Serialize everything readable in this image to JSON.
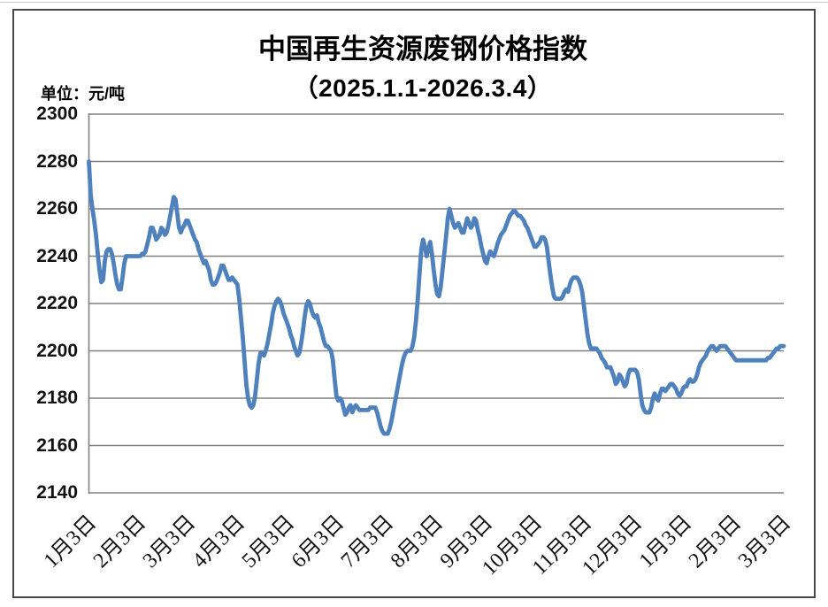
{
  "title": "中国再生资源废钢价格指数",
  "subtitle": "（2025.1.1-2026.3.4）",
  "unit_label": "单位：元/吨",
  "chart_data": {
    "type": "line",
    "title": "中国再生资源废钢价格指数",
    "subtitle": "（2025.1.1-2026.3.4）",
    "ylabel": "单位：元/吨",
    "series_name": "废钢价格指数",
    "line_color": "#4F81BD",
    "gridline_color": "#808080",
    "ylim": [
      2140,
      2300
    ],
    "y_ticks": [
      2300,
      2280,
      2260,
      2240,
      2220,
      2200,
      2180,
      2160,
      2140
    ],
    "x_tick_labels": [
      "1月3日",
      "2月3日",
      "3月3日",
      "4月3日",
      "5月3日",
      "6月3日",
      "7月3日",
      "8月3日",
      "9月3日",
      "10月3日",
      "11月3日",
      "12月3日",
      "1月3日",
      "2月3日",
      "3月3日"
    ],
    "values": [
      2280,
      2266,
      2260,
      2255,
      2249,
      2241,
      2234,
      2229,
      2230,
      2238,
      2242,
      2243,
      2243,
      2241,
      2237,
      2232,
      2228,
      2226,
      2226,
      2231,
      2237,
      2240,
      2240,
      2240,
      2240,
      2240,
      2240,
      2240,
      2240,
      2240,
      2241,
      2241,
      2242,
      2245,
      2248,
      2252,
      2252,
      2250,
      2247,
      2248,
      2249,
      2252,
      2251,
      2249,
      2250,
      2253,
      2257,
      2261,
      2265,
      2264,
      2258,
      2252,
      2250,
      2252,
      2253,
      2255,
      2255,
      2253,
      2251,
      2249,
      2247,
      2246,
      2243,
      2241,
      2239,
      2237,
      2238,
      2236,
      2234,
      2230,
      2228,
      2228,
      2229,
      2231,
      2233,
      2236,
      2236,
      2234,
      2232,
      2230,
      2230,
      2231,
      2230,
      2229,
      2228,
      2222,
      2214,
      2206,
      2196,
      2186,
      2180,
      2177,
      2176,
      2177,
      2181,
      2188,
      2195,
      2199,
      2199,
      2198,
      2200,
      2203,
      2207,
      2211,
      2216,
      2219,
      2221,
      2222,
      2221,
      2219,
      2216,
      2214,
      2212,
      2210,
      2207,
      2205,
      2202,
      2200,
      2198,
      2199,
      2203,
      2208,
      2214,
      2219,
      2221,
      2220,
      2217,
      2215,
      2214,
      2215,
      2212,
      2210,
      2207,
      2204,
      2202,
      2202,
      2201,
      2200,
      2196,
      2188,
      2181,
      2179,
      2180,
      2179,
      2176,
      2173,
      2174,
      2176,
      2177,
      2174,
      2176,
      2177,
      2176,
      2175,
      2175,
      2175,
      2175,
      2175,
      2175,
      2176,
      2176,
      2176,
      2176,
      2174,
      2171,
      2168,
      2166,
      2165,
      2165,
      2165,
      2167,
      2170,
      2174,
      2178,
      2182,
      2186,
      2190,
      2194,
      2197,
      2199,
      2200,
      2200,
      2200,
      2202,
      2206,
      2213,
      2222,
      2233,
      2243,
      2247,
      2244,
      2240,
      2243,
      2246,
      2241,
      2234,
      2228,
      2224,
      2223,
      2227,
      2234,
      2241,
      2248,
      2256,
      2260,
      2257,
      2254,
      2252,
      2253,
      2254,
      2252,
      2250,
      2250,
      2253,
      2256,
      2254,
      2252,
      2253,
      2256,
      2255,
      2251,
      2248,
      2244,
      2241,
      2238,
      2237,
      2240,
      2242,
      2241,
      2240,
      2242,
      2245,
      2247,
      2249,
      2250,
      2251,
      2253,
      2255,
      2257,
      2258,
      2259,
      2259,
      2258,
      2257,
      2257,
      2256,
      2255,
      2253,
      2252,
      2250,
      2248,
      2246,
      2244,
      2244,
      2245,
      2246,
      2248,
      2248,
      2247,
      2244,
      2238,
      2232,
      2227,
      2223,
      2222,
      2222,
      2222,
      2222,
      2223,
      2225,
      2226,
      2225,
      2228,
      2230,
      2231,
      2231,
      2231,
      2230,
      2228,
      2225,
      2219,
      2213,
      2207,
      2203,
      2201,
      2201,
      2201,
      2201,
      2200,
      2199,
      2197,
      2196,
      2195,
      2193,
      2193,
      2193,
      2191,
      2189,
      2186,
      2187,
      2190,
      2189,
      2187,
      2185,
      2186,
      2190,
      2192,
      2192,
      2192,
      2192,
      2191,
      2188,
      2182,
      2177,
      2175,
      2174,
      2174,
      2174,
      2176,
      2180,
      2182,
      2180,
      2179,
      2182,
      2184,
      2184,
      2183,
      2184,
      2185,
      2186,
      2186,
      2185,
      2184,
      2182,
      2181,
      2182,
      2184,
      2185,
      2185,
      2187,
      2188,
      2187,
      2187,
      2188,
      2190,
      2193,
      2195,
      2196,
      2197,
      2198,
      2200,
      2201,
      2202,
      2202,
      2201,
      2200,
      2201,
      2202,
      2202,
      2202,
      2202,
      2201,
      2200,
      2199,
      2198,
      2197,
      2196,
      2196,
      2196,
      2196,
      2196,
      2196,
      2196,
      2196,
      2196,
      2196,
      2196,
      2196,
      2196,
      2196,
      2196,
      2196,
      2196,
      2196,
      2197,
      2197,
      2198,
      2199,
      2200,
      2201,
      2201,
      2202,
      2202,
      2202
    ]
  }
}
